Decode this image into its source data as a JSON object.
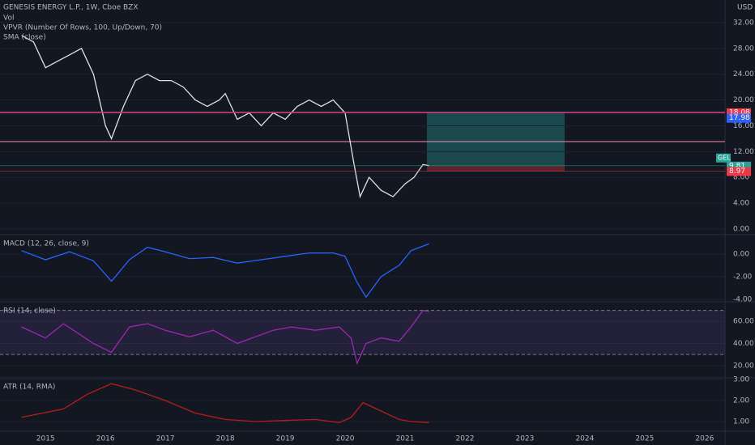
{
  "chart_data": [
    {
      "type": "line",
      "title": "GENESIS ENERGY L.P., 1W, Cboe BZX",
      "subtitles": [
        "Vol",
        "VPVR (Number Of Rows, 100, Up/Down, 70)",
        "SMA (close)"
      ],
      "currency": "USD",
      "x": [
        2014.6,
        2014.8,
        2015.0,
        2015.2,
        2015.4,
        2015.6,
        2015.8,
        2016.0,
        2016.1,
        2016.3,
        2016.5,
        2016.7,
        2016.9,
        2017.1,
        2017.3,
        2017.5,
        2017.7,
        2017.9,
        2018.0,
        2018.2,
        2018.4,
        2018.6,
        2018.8,
        2019.0,
        2019.2,
        2019.4,
        2019.6,
        2019.8,
        2020.0,
        2020.15,
        2020.25,
        2020.4,
        2020.6,
        2020.8,
        2021.0,
        2021.15,
        2021.3,
        2021.4
      ],
      "series": [
        {
          "color": "#e0e0e0",
          "values": [
            30,
            29,
            25,
            26,
            27,
            28,
            24,
            16,
            14,
            19,
            23,
            24,
            23,
            23,
            22,
            20,
            19,
            20,
            21,
            17,
            18,
            16,
            18,
            17,
            19,
            20,
            19,
            20,
            18,
            10,
            5,
            8,
            6,
            5,
            7,
            8,
            10,
            9.81
          ]
        }
      ],
      "levels": [
        {
          "value": 18.08,
          "label": "18.08",
          "color": "#f23645"
        },
        {
          "value": 17.98,
          "label": "17.98",
          "color": "#2962ff"
        },
        {
          "value": 9.81,
          "label": "9.81",
          "color": "#26a69a"
        },
        {
          "value": 8.97,
          "label": "8.97",
          "color": "#f23645"
        }
      ],
      "symbol_tag": "GEL",
      "xlim": [
        2014.24,
        2026.34
      ],
      "xticks": [
        2015,
        2016,
        2017,
        2018,
        2019,
        2020,
        2021,
        2022,
        2023,
        2024,
        2025,
        2026
      ],
      "ylim": [
        -0.88,
        35.5
      ],
      "yticks": [
        {
          "value": 0,
          "label": "0.00"
        },
        {
          "value": 4,
          "label": "4.00"
        },
        {
          "value": 8,
          "label": "8.00"
        },
        {
          "value": 12,
          "label": "12.00"
        },
        {
          "value": 16,
          "label": "16.00"
        },
        {
          "value": 20,
          "label": "20.00"
        },
        {
          "value": 24,
          "label": "24.00"
        },
        {
          "value": 28,
          "label": "28.00"
        },
        {
          "value": 32,
          "label": "32.00"
        }
      ]
    },
    {
      "type": "line",
      "title": "MACD (12, 26, close, 9)",
      "x": [
        2014.6,
        2015.0,
        2015.4,
        2015.8,
        2016.1,
        2016.4,
        2016.7,
        2017.0,
        2017.4,
        2017.8,
        2018.2,
        2018.6,
        2019.0,
        2019.4,
        2019.8,
        2020.0,
        2020.2,
        2020.35,
        2020.6,
        2020.9,
        2021.1,
        2021.4
      ],
      "series": [
        {
          "color": "#2962ff",
          "values": [
            0.3,
            -0.5,
            0.2,
            -0.6,
            -2.4,
            -0.5,
            0.6,
            0.2,
            -0.4,
            -0.3,
            -0.8,
            -0.5,
            -0.2,
            0.1,
            0.1,
            -0.2,
            -2.5,
            -3.8,
            -2.0,
            -1.0,
            0.3,
            0.9
          ]
        }
      ],
      "ylim": [
        -4.14,
        1.57
      ],
      "yticks": [
        {
          "value": 0,
          "label": "0.00"
        },
        {
          "value": -2,
          "label": "-2.00"
        },
        {
          "value": -4,
          "label": "-4.00"
        }
      ]
    },
    {
      "type": "line",
      "title": "RSI (14, close)",
      "x": [
        2014.6,
        2015.0,
        2015.3,
        2015.8,
        2016.1,
        2016.4,
        2016.7,
        2017.0,
        2017.4,
        2017.8,
        2018.2,
        2018.5,
        2018.8,
        2019.1,
        2019.5,
        2019.9,
        2020.1,
        2020.2,
        2020.35,
        2020.6,
        2020.9,
        2021.1,
        2021.3,
        2021.4
      ],
      "series": [
        {
          "color": "#9c27b0",
          "values": [
            55,
            45,
            58,
            40,
            32,
            55,
            58,
            52,
            46,
            52,
            40,
            46,
            52,
            55,
            52,
            55,
            45,
            22,
            40,
            45,
            42,
            55,
            70,
            69
          ]
        }
      ],
      "bands": [
        70,
        30
      ],
      "ylim": [
        9.6,
        76.3
      ],
      "yticks": [
        {
          "value": 60,
          "label": "60.00"
        },
        {
          "value": 40,
          "label": "40.00"
        },
        {
          "value": 20,
          "label": "20.00"
        }
      ]
    },
    {
      "type": "line",
      "title": "ATR (14, RMA)",
      "x": [
        2014.6,
        2015.3,
        2015.7,
        2016.1,
        2016.5,
        2017.0,
        2017.5,
        2018.0,
        2018.5,
        2019.0,
        2019.5,
        2019.9,
        2020.1,
        2020.3,
        2020.6,
        2020.9,
        2021.1,
        2021.4
      ],
      "series": [
        {
          "color": "#b71c1c",
          "values": [
            1.2,
            1.6,
            2.3,
            2.8,
            2.5,
            2.0,
            1.4,
            1.1,
            1.0,
            1.05,
            1.1,
            0.95,
            1.2,
            1.9,
            1.5,
            1.1,
            1.0,
            0.95
          ]
        }
      ],
      "ylim": [
        0.54,
        3.0
      ],
      "yticks": [
        {
          "value": 3,
          "label": "3.00"
        },
        {
          "value": 2,
          "label": "2.00"
        },
        {
          "value": 1,
          "label": "1.00"
        }
      ]
    }
  ]
}
